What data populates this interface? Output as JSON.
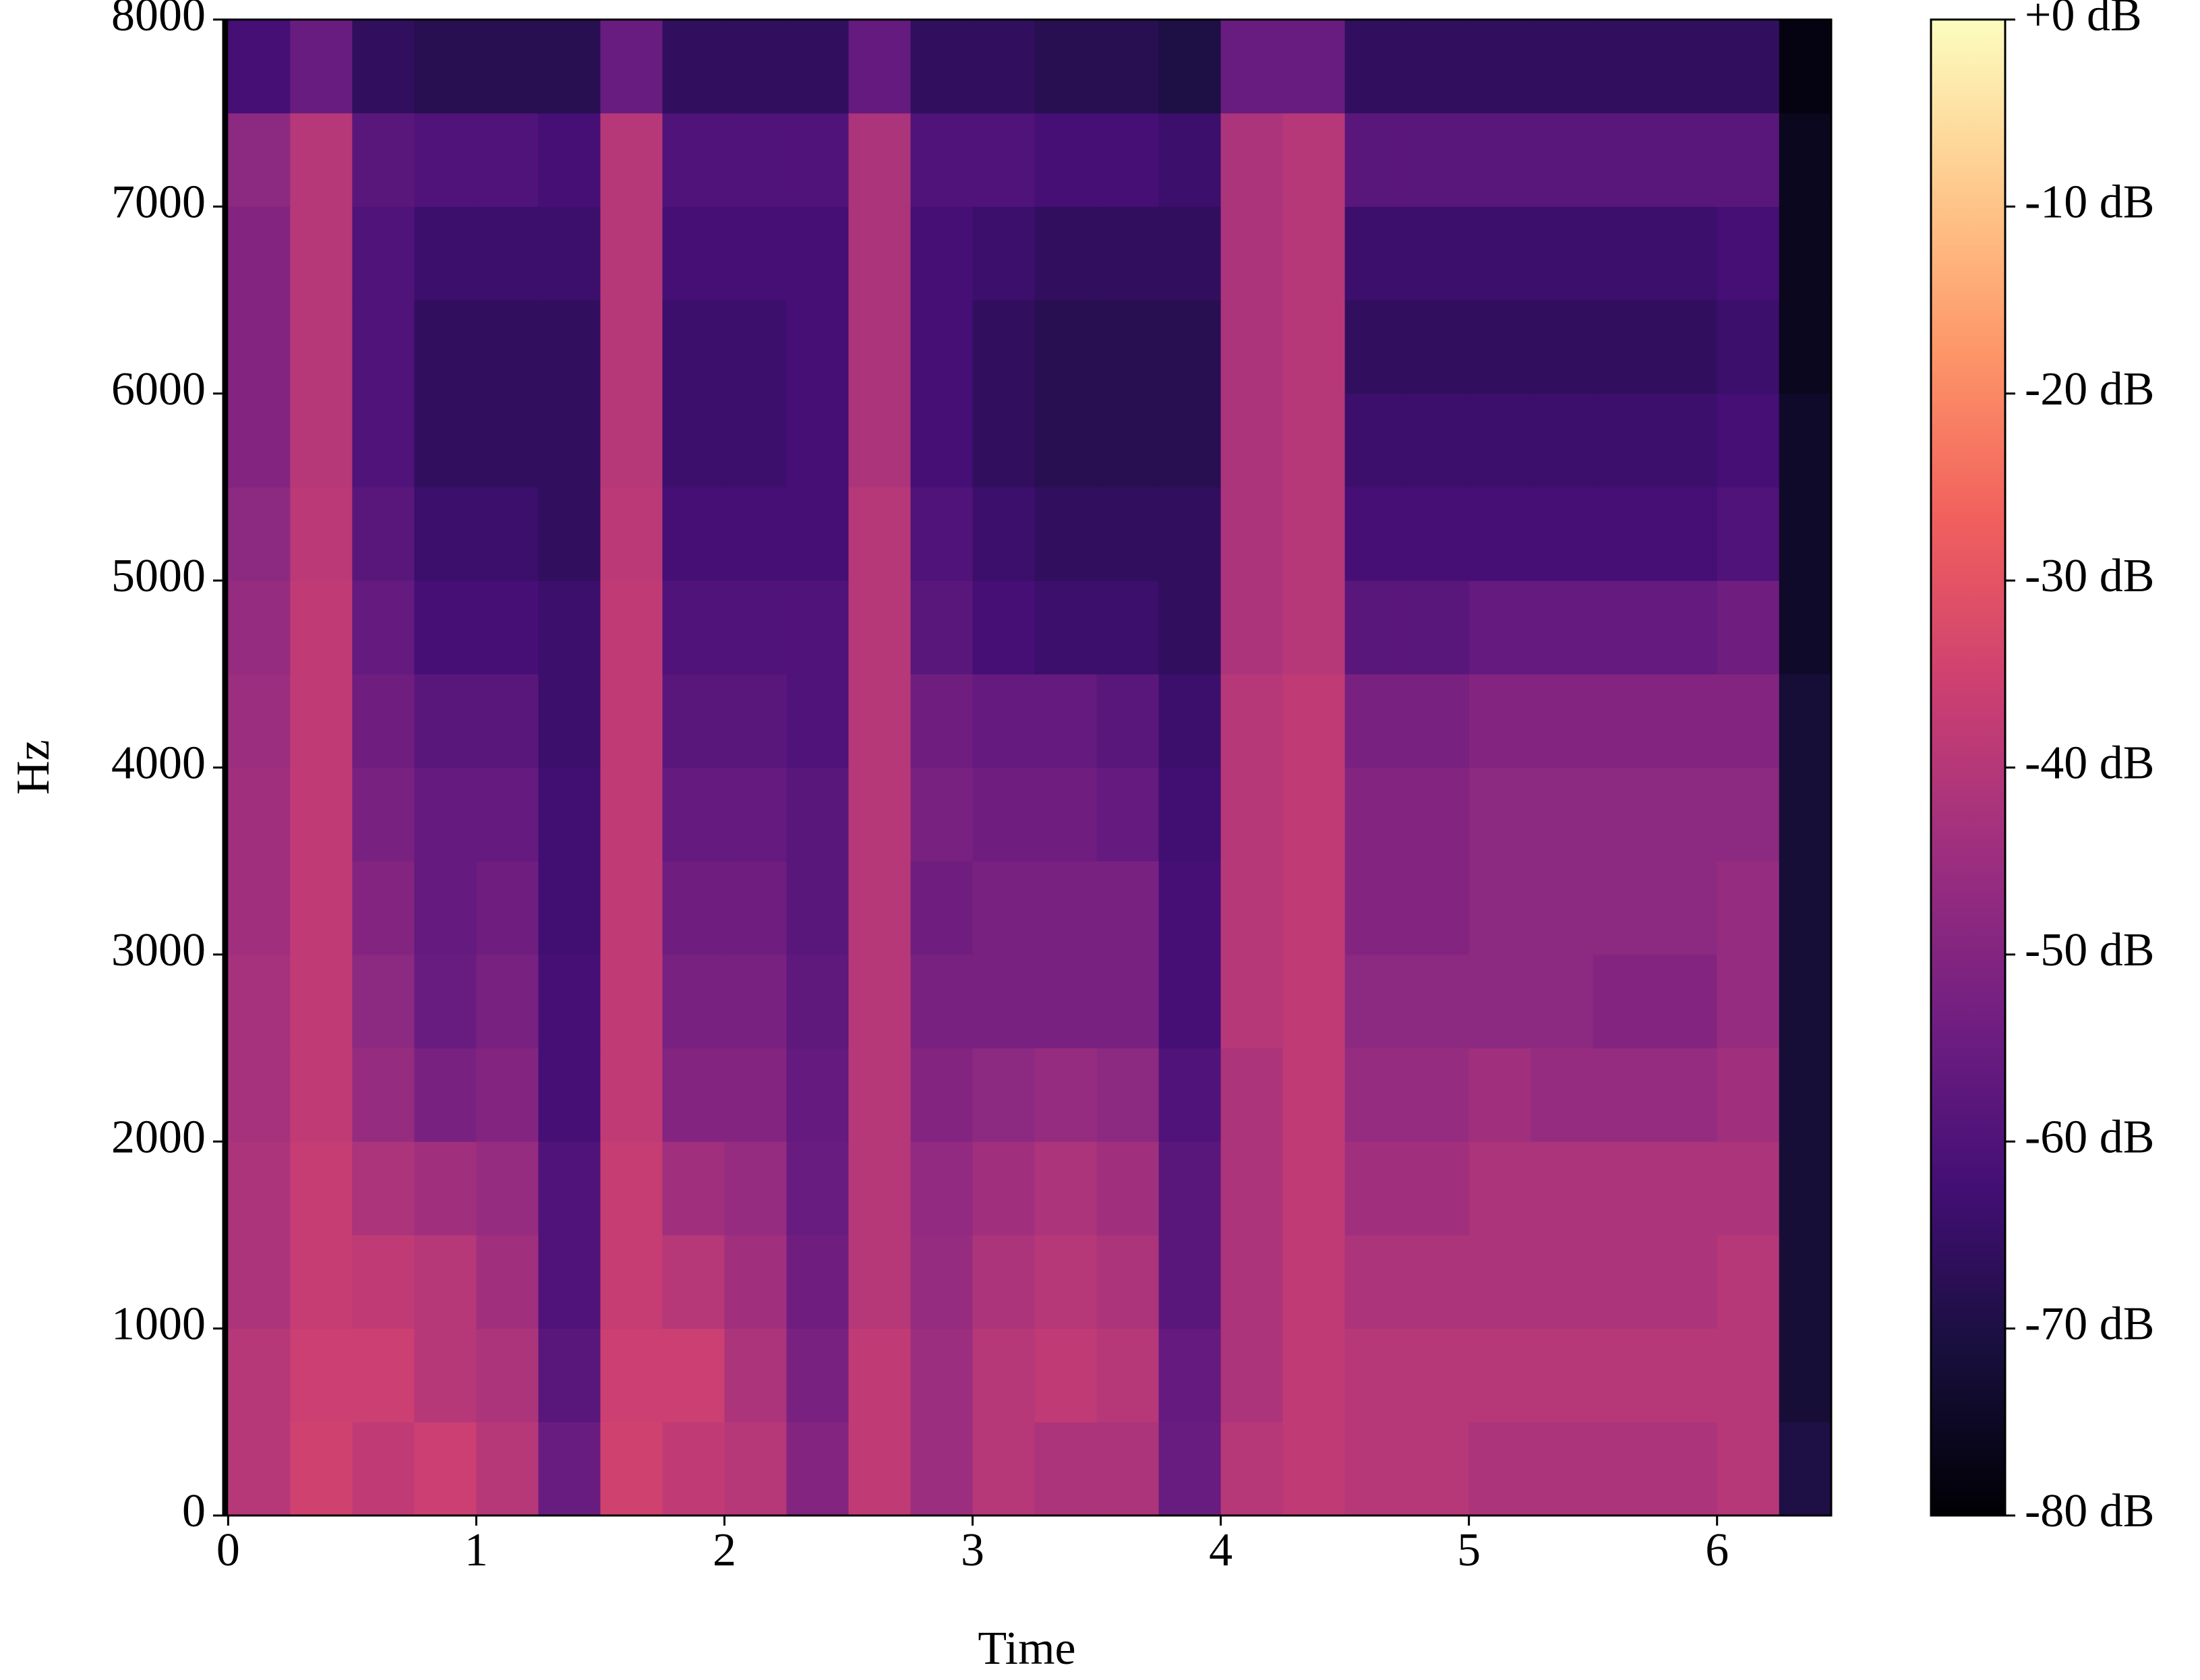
{
  "chart_data": {
    "type": "heatmap",
    "xlabel": "Time",
    "ylabel": "Hz",
    "xlim": [
      -0.02,
      6.46
    ],
    "ylim": [
      0,
      8000
    ],
    "xticks": [
      0,
      1,
      2,
      3,
      4,
      5,
      6
    ],
    "yticks": [
      0,
      1000,
      2000,
      3000,
      4000,
      5000,
      6000,
      7000,
      8000
    ],
    "x_edges": [
      0,
      0.25,
      0.5,
      0.75,
      1,
      1.25,
      1.5,
      1.75,
      2,
      2.25,
      2.5,
      2.75,
      3,
      3.25,
      3.5,
      3.75,
      4,
      4.25,
      4.5,
      4.75,
      5,
      5.25,
      5.5,
      5.75,
      6,
      6.25,
      6.46
    ],
    "y_edges": [
      0,
      500,
      1000,
      1500,
      2000,
      2500,
      3000,
      3500,
      4000,
      4500,
      5000,
      5500,
      6000,
      6500,
      7000,
      7500,
      8000
    ],
    "z": [
      [
        -40,
        -35,
        -38,
        -36,
        -40,
        -55,
        -35,
        -38,
        -40,
        -50,
        -38,
        -45,
        -40,
        -42,
        -42,
        -55,
        -40,
        -38,
        -40,
        -40,
        -42,
        -42,
        -42,
        -42,
        -40,
        -70
      ],
      [
        -40,
        -36,
        -36,
        -40,
        -42,
        -58,
        -36,
        -36,
        -42,
        -52,
        -38,
        -45,
        -40,
        -38,
        -40,
        -56,
        -42,
        -38,
        -40,
        -40,
        -40,
        -40,
        -40,
        -40,
        -40,
        -72
      ],
      [
        -42,
        -37,
        -38,
        -40,
        -44,
        -60,
        -37,
        -40,
        -44,
        -54,
        -40,
        -46,
        -42,
        -40,
        -42,
        -58,
        -42,
        -38,
        -42,
        -42,
        -42,
        -42,
        -42,
        -42,
        -40,
        -72
      ],
      [
        -42,
        -37,
        -42,
        -44,
        -46,
        -60,
        -37,
        -44,
        -46,
        -55,
        -40,
        -47,
        -44,
        -42,
        -44,
        -58,
        -42,
        -38,
        -44,
        -44,
        -42,
        -42,
        -42,
        -42,
        -42,
        -72
      ],
      [
        -43,
        -38,
        -46,
        -52,
        -50,
        -62,
        -38,
        -50,
        -50,
        -56,
        -40,
        -50,
        -48,
        -46,
        -48,
        -60,
        -42,
        -38,
        -46,
        -46,
        -44,
        -46,
        -46,
        -46,
        -44,
        -72
      ],
      [
        -43,
        -38,
        -48,
        -55,
        -52,
        -62,
        -38,
        -52,
        -52,
        -57,
        -40,
        -52,
        -52,
        -52,
        -52,
        -62,
        -40,
        -38,
        -48,
        -48,
        -48,
        -48,
        -50,
        -50,
        -46,
        -72
      ],
      [
        -44,
        -38,
        -50,
        -56,
        -54,
        -63,
        -38,
        -54,
        -54,
        -58,
        -40,
        -54,
        -52,
        -52,
        -52,
        -62,
        -40,
        -38,
        -50,
        -50,
        -48,
        -48,
        -48,
        -48,
        -46,
        -72
      ],
      [
        -44,
        -38,
        -52,
        -56,
        -56,
        -63,
        -38,
        -56,
        -56,
        -58,
        -40,
        -52,
        -54,
        -54,
        -56,
        -63,
        -40,
        -38,
        -50,
        -50,
        -48,
        -48,
        -48,
        -48,
        -48,
        -72
      ],
      [
        -45,
        -38,
        -54,
        -58,
        -58,
        -64,
        -38,
        -58,
        -58,
        -60,
        -40,
        -54,
        -56,
        -56,
        -58,
        -64,
        -40,
        -38,
        -52,
        -52,
        -50,
        -50,
        -50,
        -50,
        -50,
        -72
      ],
      [
        -46,
        -38,
        -56,
        -62,
        -62,
        -64,
        -38,
        -60,
        -60,
        -60,
        -40,
        -58,
        -62,
        -64,
        -64,
        -66,
        -42,
        -40,
        -58,
        -58,
        -56,
        -56,
        -56,
        -56,
        -54,
        -74
      ],
      [
        -48,
        -39,
        -58,
        -64,
        -64,
        -66,
        -39,
        -62,
        -62,
        -62,
        -40,
        -60,
        -64,
        -66,
        -66,
        -66,
        -42,
        -40,
        -62,
        -62,
        -62,
        -62,
        -62,
        -62,
        -60,
        -74
      ],
      [
        -50,
        -40,
        -60,
        -66,
        -66,
        -66,
        -40,
        -64,
        -64,
        -62,
        -42,
        -62,
        -66,
        -68,
        -68,
        -68,
        -42,
        -40,
        -64,
        -64,
        -64,
        -64,
        -64,
        -64,
        -62,
        -74
      ],
      [
        -50,
        -40,
        -60,
        -66,
        -66,
        -66,
        -40,
        -64,
        -64,
        -62,
        -42,
        -62,
        -66,
        -68,
        -68,
        -68,
        -42,
        -40,
        -66,
        -66,
        -66,
        -66,
        -66,
        -66,
        -64,
        -76
      ],
      [
        -50,
        -40,
        -60,
        -64,
        -64,
        -64,
        -40,
        -62,
        -62,
        -62,
        -42,
        -62,
        -64,
        -66,
        -66,
        -66,
        -42,
        -40,
        -64,
        -64,
        -64,
        -64,
        -64,
        -64,
        -62,
        -76
      ],
      [
        -48,
        -40,
        -58,
        -60,
        -60,
        -62,
        -40,
        -60,
        -60,
        -60,
        -42,
        -60,
        -60,
        -62,
        -62,
        -64,
        -42,
        -40,
        -58,
        -58,
        -58,
        -58,
        -58,
        -58,
        -58,
        -76
      ],
      [
        -62,
        -55,
        -66,
        -68,
        -68,
        -68,
        -55,
        -66,
        -66,
        -66,
        -56,
        -66,
        -66,
        -68,
        -68,
        -70,
        -55,
        -55,
        -66,
        -66,
        -66,
        -66,
        -66,
        -66,
        -66,
        -78
      ]
    ],
    "zlim": [
      -80,
      0
    ],
    "zticks": [
      {
        "value": 0,
        "label": "+0 dB"
      },
      {
        "value": -10,
        "label": "-10 dB"
      },
      {
        "value": -20,
        "label": "-20 dB"
      },
      {
        "value": -30,
        "label": "-30 dB"
      },
      {
        "value": -40,
        "label": "-40 dB"
      },
      {
        "value": -50,
        "label": "-50 dB"
      },
      {
        "value": -60,
        "label": "-60 dB"
      },
      {
        "value": -70,
        "label": "-70 dB"
      },
      {
        "value": -80,
        "label": "-80 dB"
      }
    ],
    "colorscale": [
      "#000004",
      "#180f3d",
      "#440f76",
      "#721f81",
      "#9e2f7f",
      "#cd4071",
      "#f1605d",
      "#fd9668",
      "#feca8d",
      "#fcfdbf"
    ]
  }
}
